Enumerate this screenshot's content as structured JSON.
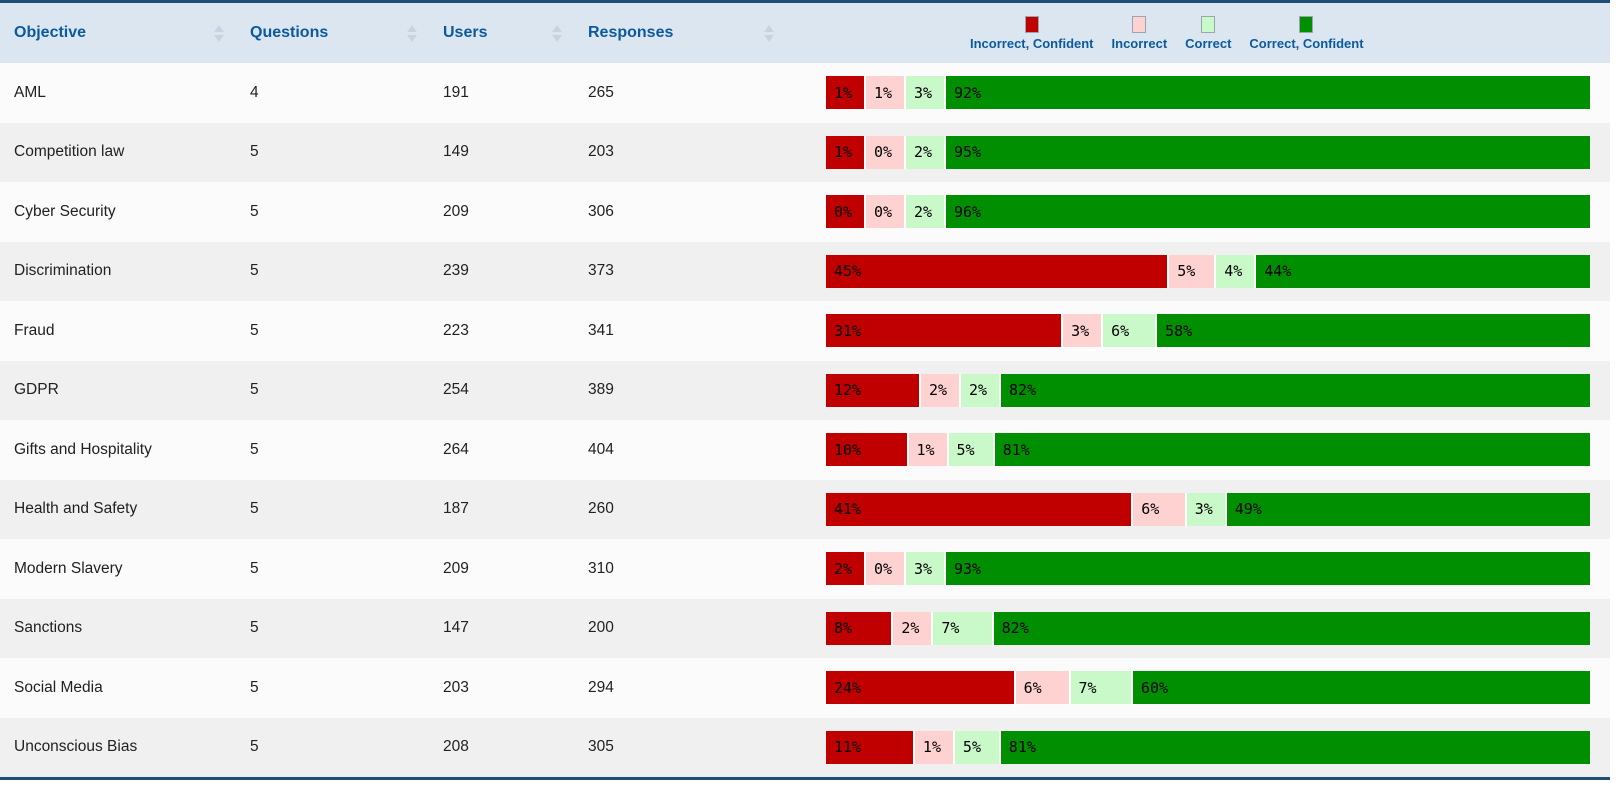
{
  "table": {
    "columns": [
      {
        "label": "Objective",
        "sortable": true
      },
      {
        "label": "Questions",
        "sortable": true
      },
      {
        "label": "Users",
        "sortable": true
      },
      {
        "label": "Responses",
        "sortable": true
      }
    ],
    "legend": [
      {
        "label": "Incorrect, Confident",
        "color": "#c00000"
      },
      {
        "label": "Incorrect",
        "color": "#ffd2d2"
      },
      {
        "label": "Correct",
        "color": "#c9f8c9"
      },
      {
        "label": "Correct, Confident",
        "color": "#008f00"
      }
    ],
    "rows": [
      {
        "objective": "AML",
        "questions": "4",
        "users": "191",
        "responses": "265",
        "bar": [
          1,
          1,
          3,
          92
        ]
      },
      {
        "objective": "Competition law",
        "questions": "5",
        "users": "149",
        "responses": "203",
        "bar": [
          1,
          0,
          2,
          95
        ]
      },
      {
        "objective": "Cyber Security",
        "questions": "5",
        "users": "209",
        "responses": "306",
        "bar": [
          0,
          0,
          2,
          96
        ]
      },
      {
        "objective": "Discrimination",
        "questions": "5",
        "users": "239",
        "responses": "373",
        "bar": [
          45,
          5,
          4,
          44
        ]
      },
      {
        "objective": "Fraud",
        "questions": "5",
        "users": "223",
        "responses": "341",
        "bar": [
          31,
          3,
          6,
          58
        ]
      },
      {
        "objective": "GDPR",
        "questions": "5",
        "users": "254",
        "responses": "389",
        "bar": [
          12,
          2,
          2,
          82
        ]
      },
      {
        "objective": "Gifts and Hospitality",
        "questions": "5",
        "users": "264",
        "responses": "404",
        "bar": [
          10,
          1,
          5,
          81
        ]
      },
      {
        "objective": "Health and Safety",
        "questions": "5",
        "users": "187",
        "responses": "260",
        "bar": [
          41,
          6,
          3,
          49
        ]
      },
      {
        "objective": "Modern Slavery",
        "questions": "5",
        "users": "209",
        "responses": "310",
        "bar": [
          2,
          0,
          3,
          93
        ]
      },
      {
        "objective": "Sanctions",
        "questions": "5",
        "users": "147",
        "responses": "200",
        "bar": [
          8,
          2,
          7,
          82
        ]
      },
      {
        "objective": "Social Media",
        "questions": "5",
        "users": "203",
        "responses": "294",
        "bar": [
          24,
          6,
          7,
          60
        ]
      },
      {
        "objective": "Unconscious Bias",
        "questions": "5",
        "users": "208",
        "responses": "305",
        "bar": [
          11,
          1,
          5,
          81
        ]
      }
    ]
  },
  "chart_data": {
    "type": "bar",
    "subtype": "horizontal-stacked-100pct",
    "title": "",
    "unit": "percent",
    "xlim": [
      0,
      100
    ],
    "legend_position": "top-right",
    "categories": [
      "AML",
      "Competition law",
      "Cyber Security",
      "Discrimination",
      "Fraud",
      "GDPR",
      "Gifts and Hospitality",
      "Health and Safety",
      "Modern Slavery",
      "Sanctions",
      "Social Media",
      "Unconscious Bias"
    ],
    "series": [
      {
        "name": "Incorrect, Confident",
        "color": "#c00000",
        "values": [
          1,
          1,
          0,
          45,
          31,
          12,
          10,
          41,
          2,
          8,
          24,
          11
        ]
      },
      {
        "name": "Incorrect",
        "color": "#ffd2d2",
        "values": [
          1,
          0,
          0,
          5,
          3,
          2,
          1,
          6,
          0,
          2,
          6,
          1
        ]
      },
      {
        "name": "Correct",
        "color": "#c9f8c9",
        "values": [
          3,
          2,
          2,
          4,
          6,
          2,
          5,
          3,
          3,
          7,
          7,
          5
        ]
      },
      {
        "name": "Correct, Confident",
        "color": "#008f00",
        "values": [
          92,
          95,
          96,
          44,
          58,
          82,
          81,
          49,
          93,
          82,
          60,
          81
        ]
      }
    ],
    "companion_table": {
      "columns": [
        "Objective",
        "Questions",
        "Users",
        "Responses"
      ],
      "rows": [
        [
          "AML",
          4,
          191,
          265
        ],
        [
          "Competition law",
          5,
          149,
          203
        ],
        [
          "Cyber Security",
          5,
          209,
          306
        ],
        [
          "Discrimination",
          5,
          239,
          373
        ],
        [
          "Fraud",
          5,
          223,
          341
        ],
        [
          "GDPR",
          5,
          254,
          389
        ],
        [
          "Gifts and Hospitality",
          5,
          264,
          404
        ],
        [
          "Health and Safety",
          5,
          187,
          260
        ],
        [
          "Modern Slavery",
          5,
          209,
          310
        ],
        [
          "Sanctions",
          5,
          147,
          200
        ],
        [
          "Social Media",
          5,
          203,
          294
        ],
        [
          "Unconscious Bias",
          5,
          208,
          305
        ]
      ]
    }
  }
}
